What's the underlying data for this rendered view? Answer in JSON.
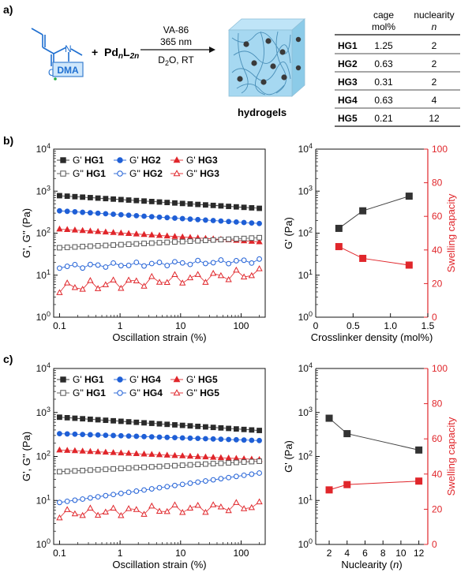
{
  "panels": {
    "a": "a)",
    "b": "b)",
    "c": "c)"
  },
  "scheme": {
    "monomer_label": "DMA",
    "plus": "+",
    "cage_label": "Pd",
    "cage_n": "n",
    "cage_l": "L",
    "cage_2n": "2n",
    "initiator": "VA-86",
    "wavelength": "365 nm",
    "conditions_d": "D",
    "conditions_sub": "2",
    "conditions_rest": "O, RT",
    "product_label": "hydrogels"
  },
  "table": {
    "col1_header_line1": "cage",
    "col1_header_line2": "mol%",
    "col2_header_line1": "nuclearity",
    "col2_header_line2": "n",
    "rows": [
      {
        "name": "HG1",
        "cage": "1.25",
        "n": "2"
      },
      {
        "name": "HG2",
        "cage": "0.63",
        "n": "2"
      },
      {
        "name": "HG3",
        "cage": "0.31",
        "n": "2"
      },
      {
        "name": "HG4",
        "cage": "0.63",
        "n": "4"
      },
      {
        "name": "HG5",
        "cage": "0.21",
        "n": "12"
      }
    ]
  },
  "colors": {
    "black": "#2b2b2b",
    "gray": "#555555",
    "blue": "#1f5fd6",
    "red": "#e0262b"
  },
  "chart_data": [
    {
      "id": "b-left",
      "type": "scatter",
      "xlabel": "Oscillation strain (%)",
      "ylabel": "G', G'' (Pa)",
      "xscale": "log",
      "yscale": "log",
      "xlim": [
        0.08,
        250
      ],
      "ylim": [
        1,
        10000
      ],
      "xticks": [
        "0.1",
        "1",
        "10",
        "100"
      ],
      "yticks": [
        "10^0",
        "10^1",
        "10^2",
        "10^3",
        "10^4"
      ],
      "legend": "top",
      "series": [
        {
          "name": "G' HG1",
          "color": "#2b2b2b",
          "marker": "square",
          "filled": true,
          "start": 780,
          "end": 390,
          "wobble": 0.0
        },
        {
          "name": "G' HG2",
          "color": "#1f5fd6",
          "marker": "circle",
          "filled": true,
          "start": 340,
          "end": 170,
          "wobble": 0.0
        },
        {
          "name": "G' HG3",
          "color": "#e0262b",
          "marker": "triangle",
          "filled": true,
          "start": 125,
          "end": 62,
          "wobble": 0.0
        },
        {
          "name": "G'' HG1",
          "color": "#555555",
          "marker": "square",
          "filled": false,
          "start": 45,
          "end": 78,
          "wobble": 0.0
        },
        {
          "name": "G'' HG2",
          "color": "#1f5fd6",
          "marker": "circle",
          "filled": false,
          "start": 16,
          "end": 22,
          "wobble": 0.05
        },
        {
          "name": "G'' HG3",
          "color": "#e0262b",
          "marker": "triangle",
          "filled": false,
          "start": 5,
          "end": 11,
          "wobble": 0.12
        }
      ]
    },
    {
      "id": "b-right",
      "type": "line",
      "xlabel": "Crosslinker density (mol%)",
      "ylabel": "G' (Pa)",
      "y2label": "Swelling capacity",
      "xlim": [
        0,
        1.5
      ],
      "ylim": [
        1,
        10000
      ],
      "y2lim": [
        0,
        100
      ],
      "xticks": [
        "0",
        "0.5",
        "1.0",
        "1.5"
      ],
      "yticks": [
        "10^0",
        "10^1",
        "10^2",
        "10^3",
        "10^4"
      ],
      "y2ticks": [
        "0",
        "20",
        "40",
        "60",
        "80",
        "100"
      ],
      "x": [
        0.31,
        0.63,
        1.25
      ],
      "gprime": [
        130,
        340,
        760
      ],
      "swelling": [
        42,
        35,
        31
      ]
    },
    {
      "id": "c-left",
      "type": "scatter",
      "xlabel": "Oscillation strain (%)",
      "ylabel": "G', G'' (Pa)",
      "xscale": "log",
      "yscale": "log",
      "xlim": [
        0.08,
        250
      ],
      "ylim": [
        1,
        10000
      ],
      "xticks": [
        "0.1",
        "1",
        "10",
        "100"
      ],
      "yticks": [
        "10^0",
        "10^1",
        "10^2",
        "10^3",
        "10^4"
      ],
      "legend": "top",
      "series": [
        {
          "name": "G' HG1",
          "color": "#2b2b2b",
          "marker": "square",
          "filled": true,
          "start": 780,
          "end": 390,
          "wobble": 0.0
        },
        {
          "name": "G' HG4",
          "color": "#1f5fd6",
          "marker": "circle",
          "filled": true,
          "start": 330,
          "end": 230,
          "wobble": 0.0
        },
        {
          "name": "G' HG5",
          "color": "#e0262b",
          "marker": "triangle",
          "filled": true,
          "start": 140,
          "end": 85,
          "wobble": 0.0
        },
        {
          "name": "G'' HG1",
          "color": "#555555",
          "marker": "square",
          "filled": false,
          "start": 45,
          "end": 78,
          "wobble": 0.0
        },
        {
          "name": "G'' HG4",
          "color": "#1f5fd6",
          "marker": "circle",
          "filled": false,
          "start": 9,
          "end": 42,
          "wobble": 0.0
        },
        {
          "name": "G'' HG5",
          "color": "#e0262b",
          "marker": "triangle",
          "filled": false,
          "start": 5,
          "end": 7.5,
          "wobble": 0.1
        }
      ]
    },
    {
      "id": "c-right",
      "type": "line",
      "xlabel": "Nuclearity (n)",
      "ylabel": "G' (Pa)",
      "y2label": "Swelling capacity",
      "xlim": [
        0.5,
        13
      ],
      "ylim": [
        1,
        10000
      ],
      "y2lim": [
        0,
        100
      ],
      "xticks": [
        "2",
        "4",
        "6",
        "8",
        "10",
        "12"
      ],
      "yticks": [
        "10^0",
        "10^1",
        "10^2",
        "10^3",
        "10^4"
      ],
      "y2ticks": [
        "0",
        "20",
        "40",
        "60",
        "80",
        "100"
      ],
      "x": [
        2,
        4,
        12
      ],
      "gprime": [
        740,
        330,
        140
      ],
      "swelling": [
        31,
        34,
        36
      ]
    }
  ]
}
